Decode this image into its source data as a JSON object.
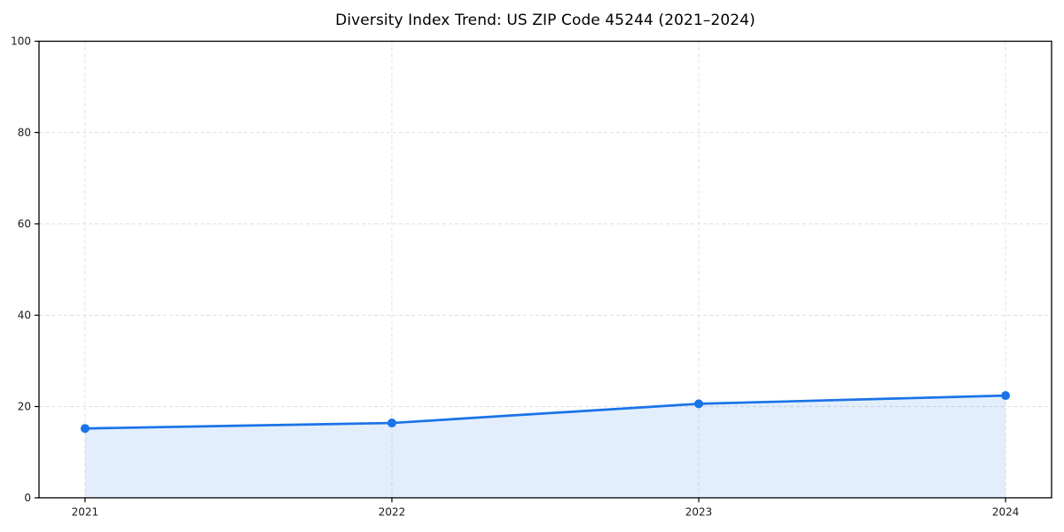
{
  "chart_data": {
    "type": "area",
    "title": "Diversity Index Trend: US ZIP Code 45244 (2021–2024)",
    "x": [
      2021,
      2022,
      2023,
      2024
    ],
    "categories": [
      "2021",
      "2022",
      "2023",
      "2024"
    ],
    "values": [
      15.2,
      16.4,
      20.6,
      22.4
    ],
    "series": [
      {
        "name": "Diversity Index",
        "values": [
          15.2,
          16.4,
          20.6,
          22.4
        ]
      }
    ],
    "xlabel": "",
    "ylabel": "",
    "ylim": [
      0,
      100
    ],
    "xlim": [
      2020.85,
      2024.15
    ],
    "yticks": [
      0,
      20,
      40,
      60,
      80,
      100
    ],
    "ytick_labels": [
      "0",
      "20",
      "40",
      "60",
      "80",
      "100"
    ],
    "grid": "dashed",
    "legend_position": "none",
    "marker": "circle",
    "colors": {
      "line": "#1a73e8",
      "marker": "#1a73e8",
      "fill": "rgba(26,115,232,0.12)",
      "grid": "#e0e0e0",
      "spine": "#000000",
      "tick_label": "#1a1a1a",
      "background": "#ffffff"
    }
  }
}
